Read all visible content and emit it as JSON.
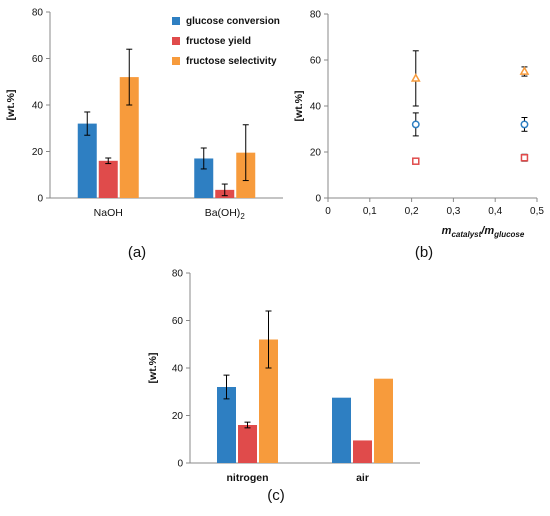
{
  "colors": {
    "conversion": "#2e7fc2",
    "yield": "#e04b4b",
    "selectivity": "#f79b3c",
    "axis": "#888888",
    "text": "#111111"
  },
  "chart_data": [
    {
      "type": "bar",
      "panel_label": "(a)",
      "title": "",
      "xlabel": "",
      "ylabel": "[wt.%]",
      "ylim": [
        0,
        80
      ],
      "yticks": [
        "0",
        "20",
        "40",
        "60",
        "80"
      ],
      "categories": [
        "NaOH",
        "Ba(OH)2"
      ],
      "category_html": [
        {
          "base": "NaOH",
          "sub": ""
        },
        {
          "base": "Ba(OH)",
          "sub": "2"
        }
      ],
      "legend_position": "top-right",
      "series": [
        {
          "name": "glucose conversion",
          "values": [
            32,
            17
          ],
          "errors": [
            5,
            4.5
          ]
        },
        {
          "name": "fructose yield",
          "values": [
            16,
            3.5
          ],
          "errors": [
            1.2,
            2.5
          ]
        },
        {
          "name": "fructose selectivity",
          "values": [
            52,
            19.5
          ],
          "errors": [
            12,
            12
          ]
        }
      ]
    },
    {
      "type": "scatter",
      "panel_label": "(b)",
      "title": "",
      "xlabel": "m_catalyst/m_glucose",
      "xlabel_parts": {
        "m1": "m",
        "sub1": "catalyst",
        "slash": "/",
        "m2": "m",
        "sub2": "glucose"
      },
      "ylabel": "[wt.%]",
      "xlim": [
        0,
        0.5
      ],
      "ylim": [
        0,
        80
      ],
      "xticks": [
        "0",
        "0,1",
        "0,2",
        "0,3",
        "0,4",
        "0,5"
      ],
      "yticks": [
        "0",
        "20",
        "40",
        "60",
        "80"
      ],
      "series": [
        {
          "marker": "circle",
          "x": [
            0.21,
            0.47
          ],
          "y": [
            32,
            32
          ],
          "errors": [
            5,
            3
          ]
        },
        {
          "marker": "square",
          "x": [
            0.21,
            0.47
          ],
          "y": [
            16,
            17.5
          ],
          "errors": [
            1.2,
            1.5
          ]
        },
        {
          "marker": "triangle",
          "x": [
            0.21,
            0.47
          ],
          "y": [
            52,
            55
          ],
          "errors": [
            12,
            2
          ]
        }
      ]
    },
    {
      "type": "bar",
      "panel_label": "(c)",
      "title": "",
      "xlabel": "",
      "ylabel": "[wt.%]",
      "ylim": [
        0,
        80
      ],
      "yticks": [
        "0",
        "20",
        "40",
        "60",
        "80"
      ],
      "categories": [
        "nitrogen",
        "air"
      ],
      "series": [
        {
          "values": [
            32,
            27.5
          ],
          "errors": [
            5,
            null
          ]
        },
        {
          "values": [
            16,
            9.5
          ],
          "errors": [
            1.2,
            null
          ]
        },
        {
          "values": [
            52,
            35.5
          ],
          "errors": [
            12,
            null
          ]
        }
      ]
    }
  ]
}
